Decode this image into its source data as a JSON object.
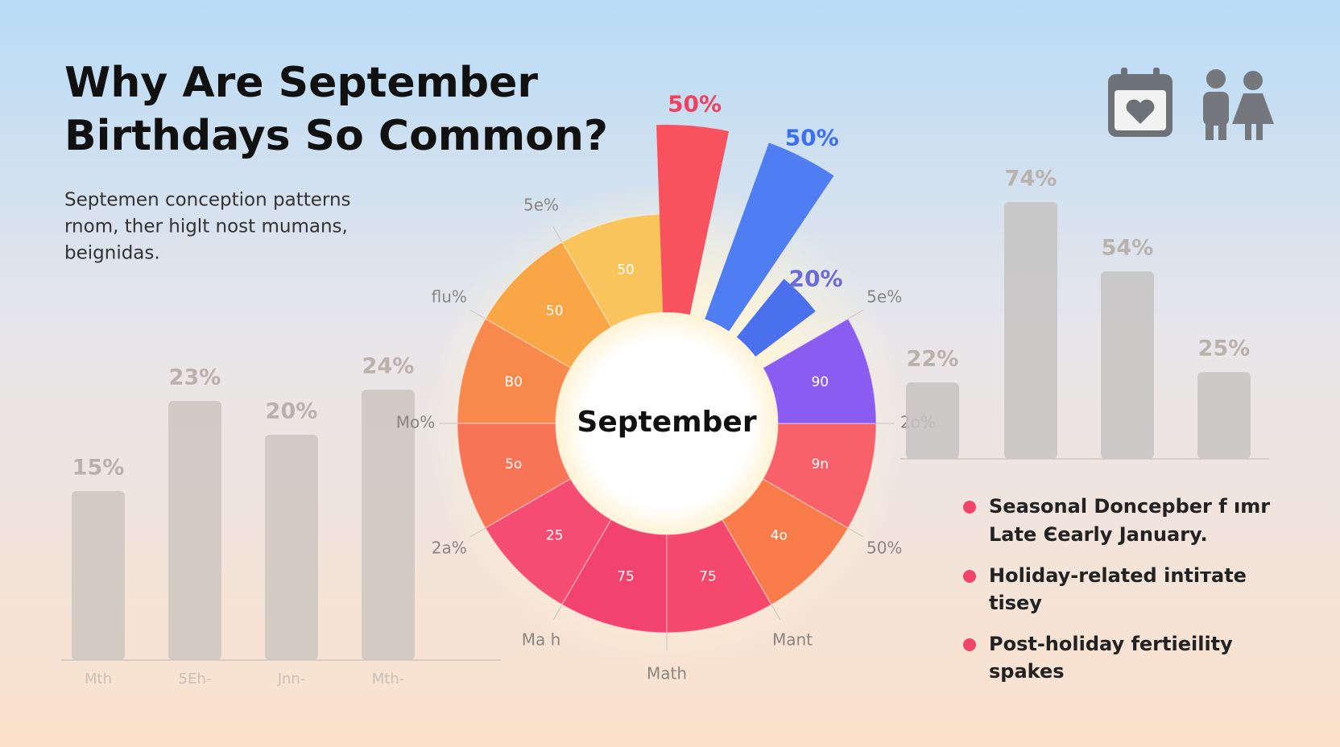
{
  "header": {
    "title": [
      "Why Are September",
      "Birthdays So Common?"
    ],
    "subtitle": [
      "Septemen conception patterns",
      "rnom, ther higlt nost mumans,",
      "beignidas."
    ]
  },
  "chart_data": [
    {
      "type": "bar",
      "categories": [
        "Mth",
        "5Eh-",
        "Jnn-",
        "Mth-"
      ],
      "values": [
        15,
        23,
        20,
        24
      ],
      "value_labels": [
        "15%",
        "23%",
        "20%",
        "24%"
      ],
      "color": "#cdc5be",
      "ylim": [
        0,
        25
      ]
    },
    {
      "type": "donut",
      "center_label": "September",
      "sector_labels": [
        "50",
        "50",
        "B0",
        "5o",
        "25",
        "75",
        "75",
        "4o",
        "9n",
        "90"
      ],
      "colors": [
        "#f9c45c",
        "#f8a646",
        "#f8894c",
        "#f87456",
        "#f44c72",
        "#f2426f",
        "#f4486c",
        "#f87c4a",
        "#f8616a",
        "#8b5cf0"
      ],
      "outer_labels": [
        "5e%",
        "flu%",
        "Mo%",
        "2a%",
        "Ma h",
        "Math",
        "Mant",
        "50%",
        "2o%",
        "5e%"
      ],
      "values": [
        50,
        50,
        20
      ],
      "value_labels": [
        "50%",
        "50%",
        "20%"
      ],
      "spike_colors": [
        "#f8525f",
        "#4f7ef2",
        "#4a70ee"
      ],
      "label_colors": [
        "#f0405e",
        "#3b6ef0",
        "#6a6ad8"
      ]
    },
    {
      "type": "bar",
      "categories": [
        null,
        null,
        null,
        null
      ],
      "values": [
        22,
        74,
        54,
        25
      ],
      "value_labels": [
        "22%",
        "74%",
        "54%",
        "25%"
      ],
      "color": "#c6c3c2",
      "ylim": [
        0,
        80
      ]
    }
  ],
  "bullets": [
    [
      "Seasonal Doncepber f ımr",
      "Late Єearly January."
    ],
    [
      "Holiday-related intiтate",
      "tisey"
    ],
    [
      "Post-holiday fertieility",
      "spakes"
    ]
  ]
}
